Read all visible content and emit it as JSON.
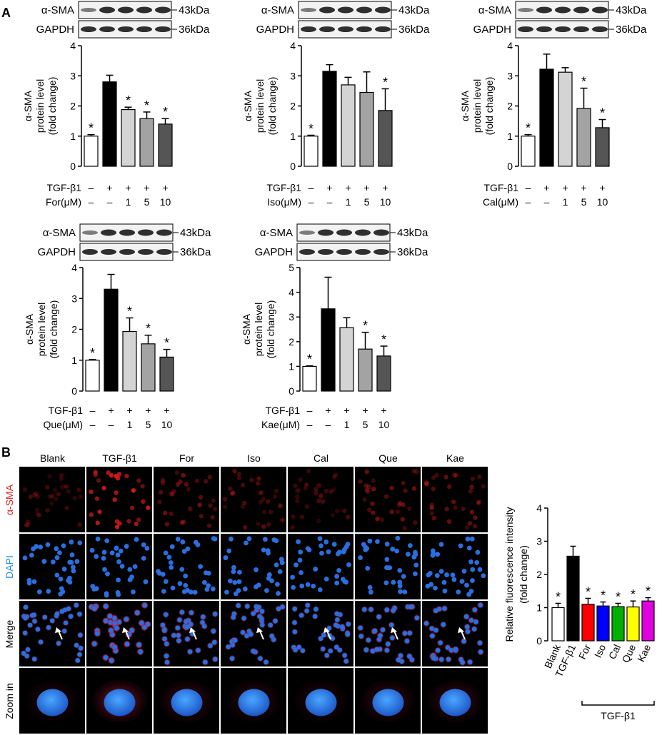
{
  "panel_labels": {
    "a": "A",
    "b": "B"
  },
  "blot": {
    "target": "α-SMA",
    "loading": "GAPDH",
    "target_kda": "43kDa",
    "loading_kda": "36kDa"
  },
  "common": {
    "ylabel_lines": [
      "α-SMA",
      "protein level",
      "(fold change)"
    ],
    "row1_label": "TGF-β1",
    "row1": [
      "–",
      "+",
      "+",
      "+",
      "+"
    ],
    "row2": [
      "–",
      "–",
      "1",
      "5",
      "10"
    ],
    "significance": "*"
  },
  "panel_b": {
    "columns": [
      "Blank",
      "TGF-β1",
      "For",
      "Iso",
      "Cal",
      "Que",
      "Kae"
    ],
    "rows": [
      "α-SMA",
      "DAPI",
      "Merge",
      "Zoom in"
    ],
    "row_colors": [
      "#e02020",
      "#1f8fe0",
      "#000000",
      "#000000"
    ]
  },
  "chart_data": [
    {
      "type": "bar",
      "drug_label": "For(μM)",
      "categories": [
        "–/–",
        "+/–",
        "+/1",
        "+/5",
        "+/10"
      ],
      "values": [
        1.0,
        2.8,
        1.88,
        1.58,
        1.4
      ],
      "errors": [
        0.05,
        0.22,
        0.08,
        0.22,
        0.18
      ],
      "significant": [
        true,
        false,
        true,
        true,
        true
      ],
      "colors": [
        "#ffffff",
        "#000000",
        "#d4d4d4",
        "#a3a3a3",
        "#555555"
      ],
      "ylim": [
        0,
        4
      ],
      "yticks": [
        "0",
        "1",
        "2",
        "3",
        "4"
      ]
    },
    {
      "type": "bar",
      "drug_label": "Iso(μM)",
      "categories": [
        "–/–",
        "+/–",
        "+/1",
        "+/5",
        "+/10"
      ],
      "values": [
        1.0,
        3.15,
        2.7,
        2.45,
        1.85
      ],
      "errors": [
        0.03,
        0.22,
        0.25,
        0.68,
        0.72
      ],
      "significant": [
        true,
        false,
        false,
        false,
        true
      ],
      "colors": [
        "#ffffff",
        "#000000",
        "#d4d4d4",
        "#a3a3a3",
        "#555555"
      ],
      "ylim": [
        0,
        4
      ],
      "yticks": [
        "0",
        "1",
        "2",
        "3",
        "4"
      ]
    },
    {
      "type": "bar",
      "drug_label": "Cal(μM)",
      "categories": [
        "–/–",
        "+/–",
        "+/1",
        "+/5",
        "+/10"
      ],
      "values": [
        1.0,
        3.22,
        3.12,
        1.92,
        1.28
      ],
      "errors": [
        0.05,
        0.5,
        0.15,
        0.67,
        0.27
      ],
      "significant": [
        true,
        false,
        false,
        true,
        true
      ],
      "colors": [
        "#ffffff",
        "#000000",
        "#d4d4d4",
        "#a3a3a3",
        "#555555"
      ],
      "ylim": [
        0,
        4
      ],
      "yticks": [
        "0",
        "1",
        "2",
        "3",
        "4"
      ]
    },
    {
      "type": "bar",
      "drug_label": "Que(μM)",
      "categories": [
        "–/–",
        "+/–",
        "+/1",
        "+/5",
        "+/10"
      ],
      "values": [
        1.0,
        3.3,
        1.93,
        1.53,
        1.1
      ],
      "errors": [
        0.02,
        0.48,
        0.44,
        0.28,
        0.25
      ],
      "significant": [
        true,
        false,
        true,
        true,
        true
      ],
      "colors": [
        "#ffffff",
        "#000000",
        "#d4d4d4",
        "#a3a3a3",
        "#555555"
      ],
      "ylim": [
        0,
        4
      ],
      "yticks": [
        "0",
        "1",
        "2",
        "3",
        "4"
      ]
    },
    {
      "type": "bar",
      "drug_label": "Kae(μM)",
      "categories": [
        "–/–",
        "+/–",
        "+/1",
        "+/5",
        "+/10"
      ],
      "values": [
        1.0,
        3.33,
        2.57,
        1.7,
        1.42
      ],
      "errors": [
        0.02,
        1.28,
        0.4,
        0.68,
        0.4
      ],
      "significant": [
        true,
        false,
        false,
        true,
        true
      ],
      "colors": [
        "#ffffff",
        "#000000",
        "#d4d4d4",
        "#a3a3a3",
        "#555555"
      ],
      "ylim": [
        0,
        5
      ],
      "yticks": [
        "0",
        "1",
        "2",
        "3",
        "4",
        "5"
      ]
    },
    {
      "type": "bar",
      "ylabel_lines": [
        "Relative fluorescence intensity",
        "(fold change)"
      ],
      "categories": [
        "Blank",
        "TGF-β1",
        "For",
        "Iso",
        "Cal",
        "Que",
        "Kae"
      ],
      "group_label": "TGF-β1",
      "values": [
        1.0,
        2.55,
        1.1,
        1.05,
        1.03,
        1.02,
        1.2
      ],
      "errors": [
        0.13,
        0.3,
        0.18,
        0.12,
        0.1,
        0.18,
        0.1
      ],
      "significant": [
        true,
        false,
        true,
        true,
        true,
        true,
        true
      ],
      "colors": [
        "#ffffff",
        "#000000",
        "#ff0000",
        "#0000ff",
        "#00b000",
        "#ffff00",
        "#e000e0"
      ],
      "ylim": [
        0,
        4
      ],
      "yticks": [
        "0",
        "1",
        "2",
        "3",
        "4"
      ]
    }
  ]
}
